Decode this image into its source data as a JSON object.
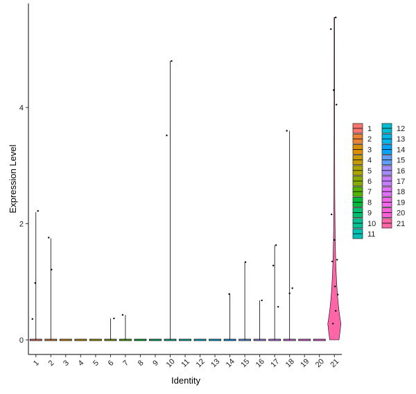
{
  "chart_data": {
    "type": "violin",
    "xlabel": "Identity",
    "ylabel": "Expression Level",
    "ylim": [
      -0.25,
      5.88
    ],
    "yticks": [
      0,
      2,
      4
    ],
    "categories": [
      "1",
      "2",
      "3",
      "4",
      "5",
      "6",
      "7",
      "8",
      "9",
      "10",
      "11",
      "12",
      "13",
      "14",
      "15",
      "16",
      "17",
      "18",
      "19",
      "20",
      "21"
    ],
    "colors": [
      "#F8766D",
      "#EB8335",
      "#DA8F00",
      "#C49A00",
      "#A9A400",
      "#86AC00",
      "#53B400",
      "#00BA38",
      "#00BE6D",
      "#00C094",
      "#00C0B5",
      "#00BDD1",
      "#00B6EB",
      "#06A4FF",
      "#619CFF",
      "#A58AFF",
      "#C77CFF",
      "#DF70F8",
      "#F166E8",
      "#FB61D7",
      "#FF66A8"
    ],
    "series": [
      {
        "max": 2.2,
        "points": [
          0.36,
          0.98,
          2.22
        ]
      },
      {
        "max": 1.75,
        "points": [
          1.76,
          1.21
        ]
      },
      {
        "max": 0,
        "points": []
      },
      {
        "max": 0,
        "points": []
      },
      {
        "max": 0,
        "points": []
      },
      {
        "max": 0.37,
        "points": [
          0.37
        ]
      },
      {
        "max": 0.43,
        "points": [
          0.43
        ]
      },
      {
        "max": 0,
        "points": []
      },
      {
        "max": 0,
        "points": []
      },
      {
        "max": 4.8,
        "points": [
          4.8,
          3.52
        ]
      },
      {
        "max": 0,
        "points": []
      },
      {
        "max": 0,
        "points": []
      },
      {
        "max": 0,
        "points": []
      },
      {
        "max": 0.79,
        "points": [
          0.79
        ]
      },
      {
        "max": 1.34,
        "points": [
          1.34
        ]
      },
      {
        "max": 0.68,
        "points": [
          0.68
        ]
      },
      {
        "max": 1.63,
        "points": [
          0.57,
          1.28,
          1.63
        ]
      },
      {
        "max": 3.6,
        "points": [
          3.6,
          0.8,
          0.89
        ]
      },
      {
        "max": 0,
        "points": []
      },
      {
        "max": 0,
        "points": []
      },
      {
        "max": 5.55,
        "points": [
          5.55,
          5.35,
          4.3,
          4.05,
          2.16,
          1.72,
          1.38,
          1.35,
          0.92,
          0.78,
          0.28,
          0.5
        ]
      }
    ],
    "legend": {
      "position": "right",
      "columns": [
        [
          "1",
          "2",
          "3",
          "4",
          "5",
          "6",
          "7",
          "8",
          "9",
          "10",
          "11"
        ],
        [
          "12",
          "13",
          "14",
          "15",
          "16",
          "17",
          "18",
          "19",
          "20",
          "21"
        ]
      ]
    },
    "grid": false
  }
}
